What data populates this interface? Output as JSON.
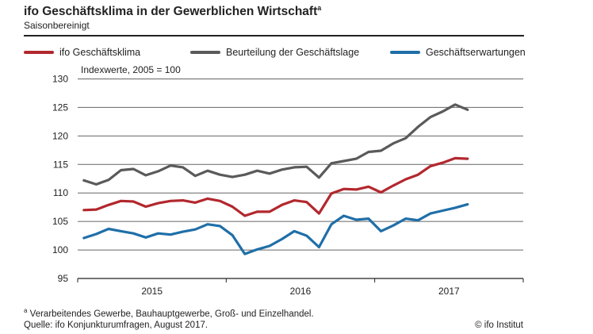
{
  "header": {
    "title": "ifo Geschäftsklima in der Gewerblichen Wirtschaft",
    "title_sup": "a",
    "subtitle": "Saisonbereinigt"
  },
  "chart_data": {
    "type": "line",
    "unit_label": "Indexwerte, 2005 = 100",
    "ylim": [
      95,
      130
    ],
    "yticks": [
      95,
      100,
      105,
      110,
      115,
      120,
      125,
      130
    ],
    "grid": true,
    "legend_placement": "top",
    "x_start": "2015-01",
    "x_end_axis": "2017-12",
    "year_labels": [
      "2015",
      "2016",
      "2017"
    ],
    "x": [
      "2015-01",
      "2015-02",
      "2015-03",
      "2015-04",
      "2015-05",
      "2015-06",
      "2015-07",
      "2015-08",
      "2015-09",
      "2015-10",
      "2015-11",
      "2015-12",
      "2016-01",
      "2016-02",
      "2016-03",
      "2016-04",
      "2016-05",
      "2016-06",
      "2016-07",
      "2016-08",
      "2016-09",
      "2016-10",
      "2016-11",
      "2016-12",
      "2017-01",
      "2017-02",
      "2017-03",
      "2017-04",
      "2017-05",
      "2017-06",
      "2017-07",
      "2017-08"
    ],
    "series": [
      {
        "name": "ifo Geschäftsklima",
        "color": "#b2282e",
        "values": [
          107.0,
          107.1,
          107.9,
          108.6,
          108.5,
          107.6,
          108.2,
          108.6,
          108.7,
          108.3,
          109.0,
          108.6,
          107.6,
          106.0,
          106.7,
          106.7,
          107.9,
          108.7,
          108.4,
          106.4,
          109.9,
          110.7,
          110.6,
          111.1,
          110.1,
          111.3,
          112.4,
          113.2,
          114.7,
          115.3,
          116.1,
          116.0
        ]
      },
      {
        "name": "Beurteilung der Geschäftslage",
        "color": "#5a5a5a",
        "values": [
          112.2,
          111.5,
          112.3,
          114.0,
          114.2,
          113.1,
          113.8,
          114.8,
          114.5,
          113.0,
          113.9,
          113.2,
          112.8,
          113.2,
          113.9,
          113.4,
          114.1,
          114.5,
          114.6,
          112.7,
          115.2,
          115.6,
          116.0,
          117.2,
          117.4,
          118.7,
          119.6,
          121.6,
          123.3,
          124.3,
          125.5,
          124.6
        ]
      },
      {
        "name": "Geschäftserwartungen",
        "color": "#1f6fa8",
        "values": [
          102.1,
          102.8,
          103.7,
          103.3,
          102.9,
          102.2,
          102.9,
          102.7,
          103.2,
          103.6,
          104.5,
          104.2,
          102.6,
          99.3,
          100.1,
          100.7,
          101.9,
          103.3,
          102.5,
          100.5,
          104.5,
          106.0,
          105.3,
          105.5,
          103.3,
          104.3,
          105.5,
          105.2,
          106.4,
          106.9,
          107.4,
          108.0
        ]
      }
    ]
  },
  "footer": {
    "footnote_mark": "a",
    "footnote": "Verarbeitendes Gewerbe, Bauhauptgewerbe, Groß- und Einzelhandel.",
    "source": "Quelle: ifo Konjunkturumfragen, August 2017.",
    "copyright": "© ifo Institut"
  }
}
